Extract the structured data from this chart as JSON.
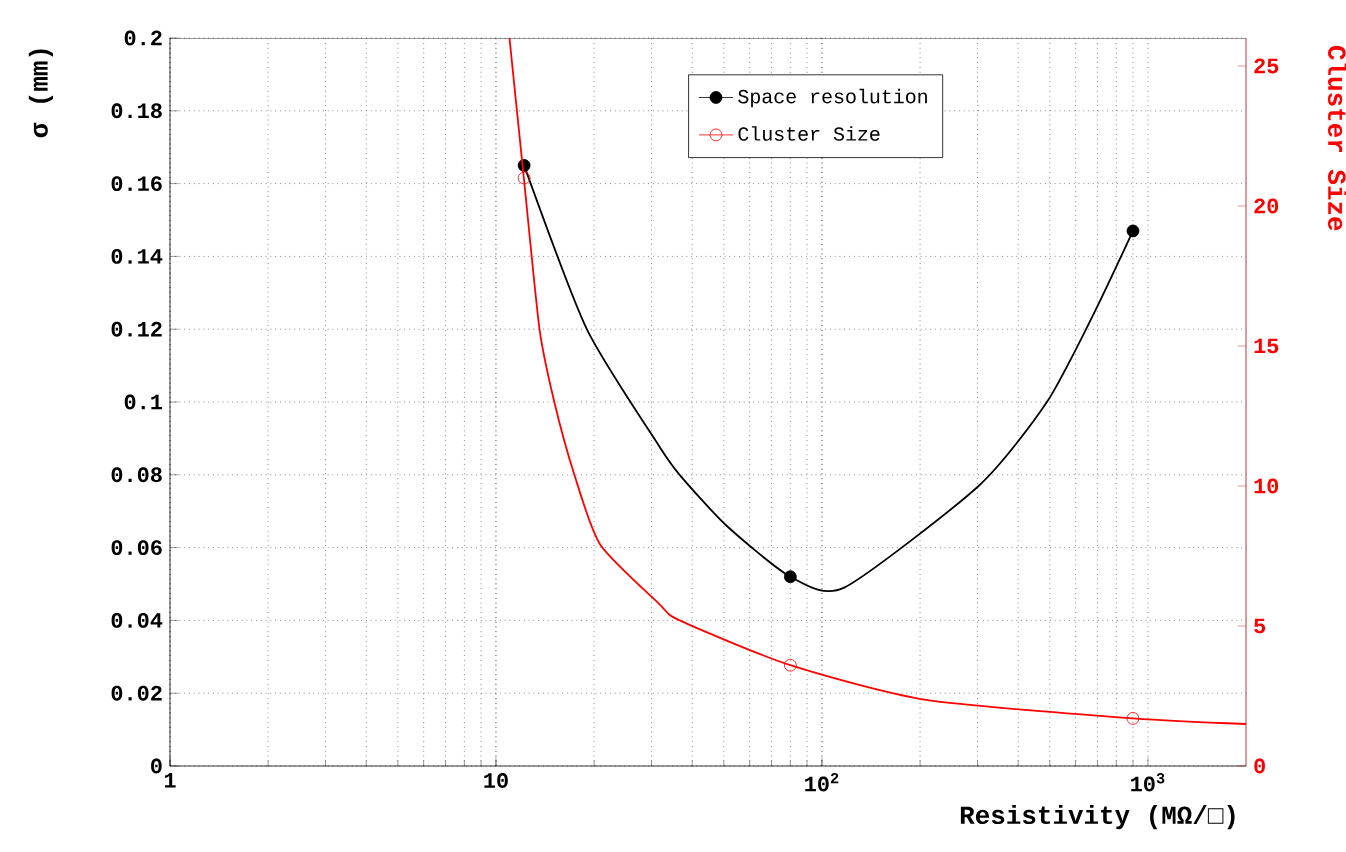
{
  "chart_data": {
    "type": "scatter",
    "xlabel": "Resistivity (MΩ/□)",
    "ylabel": "σ (mm)",
    "y2label": "Cluster Size",
    "log": "x",
    "grid": true,
    "legend": "top",
    "xlim": [
      1,
      2000
    ],
    "xticks": [
      1,
      10,
      {
        "value": 100,
        "label": "10$^{2}$"
      },
      {
        "value": 1000,
        "label": "10$^{3}$"
      }
    ],
    "ylim": [
      0,
      0.2
    ],
    "yticks": [
      0,
      0.02,
      0.04,
      0.06,
      0.08,
      0.1,
      0.12,
      0.14,
      0.16,
      0.18,
      0.2
    ],
    "y2lim": [
      0,
      26
    ],
    "y2ticks": [
      0,
      5,
      10,
      15,
      20,
      25
    ],
    "series": [
      {
        "name": "Space resolution",
        "marker": "circle",
        "color": "#000000",
        "x": [
          12.2,
          80,
          900
        ],
        "values": [
          0.165,
          0.052,
          0.147
        ]
      },
      {
        "name": "Cluster Size",
        "marker": "circle",
        "axis": "y2",
        "color": "#ff0000",
        "x": [
          12.2,
          80,
          900
        ],
        "values": [
          21,
          3.6,
          1.7
        ]
      },
      {
        "type": "line",
        "color": "#000000",
        "x": [
          12.2,
          19,
          31.6,
          36.6,
          51,
          80,
          117,
          303,
          490,
          680,
          900
        ],
        "values": [
          0.165,
          0.12,
          0.088,
          0.08,
          0.066,
          0.052,
          0.049,
          0.077,
          0.1,
          0.124,
          0.147
        ]
      },
      {
        "type": "line",
        "axis": "y2",
        "color": "#ff0000",
        "x": [
          11,
          12.2,
          13.6,
          15.1,
          17.4,
          20.9,
          31.6,
          36.6,
          80,
          209,
          900,
          2000
        ],
        "values": [
          26,
          20.9,
          15.6,
          13,
          10.4,
          7.9,
          5.8,
          5.2,
          3.6,
          2.36,
          1.7,
          1.5
        ]
      }
    ]
  }
}
